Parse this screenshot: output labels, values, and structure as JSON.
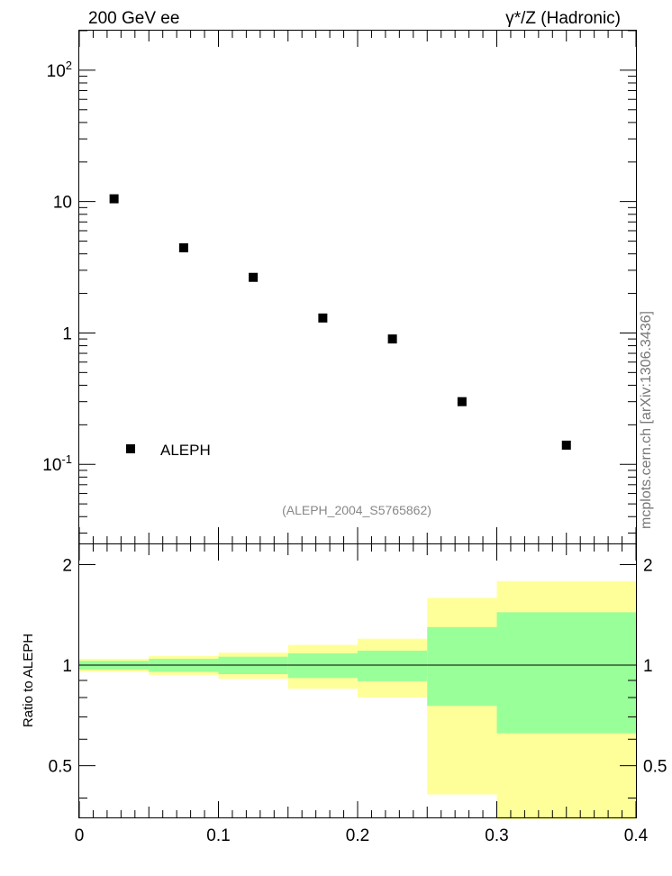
{
  "header": {
    "left": "200 GeV ee",
    "right": "γ*/Z (Hadronic)"
  },
  "side_label": "mcplots.cern.ch [arXiv:1306.3436]",
  "ref_label": "(ALEPH_2004_S5765862)",
  "legend_label": "ALEPH",
  "ratio_ylabel": "Ratio to ALEPH",
  "colors": {
    "marker": "#000000",
    "band_outer": "#ffff99",
    "band_inner": "#99ff99"
  },
  "chart_data": [
    {
      "type": "scatter",
      "yscale": "log",
      "xlim": [
        0,
        0.4
      ],
      "ylim": [
        0.025,
        200
      ],
      "ytick_labels": [
        "10^-1",
        "1",
        "10",
        "10^2"
      ],
      "legend": "bottom-left",
      "series": [
        {
          "name": "ALEPH",
          "x": [
            0.025,
            0.075,
            0.125,
            0.175,
            0.225,
            0.275,
            0.35
          ],
          "y": [
            10.5,
            4.45,
            2.65,
            1.3,
            0.9,
            0.3,
            0.14
          ]
        }
      ]
    },
    {
      "type": "area",
      "ylabel": "Ratio to ALEPH",
      "xlim": [
        0,
        0.4
      ],
      "ylim": [
        0.35,
        2.3
      ],
      "xtick_labels": [
        "0",
        "0.1",
        "0.2",
        "0.3",
        "0.4"
      ],
      "ytick_labels": [
        "0.5",
        "1",
        "2"
      ],
      "reference_line": 1,
      "bins": [
        {
          "lo": 0.0,
          "hi": 0.05,
          "outer": [
            0.955,
            1.045
          ],
          "inner": [
            0.97,
            1.03
          ]
        },
        {
          "lo": 0.05,
          "hi": 0.1,
          "outer": [
            0.935,
            1.065
          ],
          "inner": [
            0.955,
            1.045
          ]
        },
        {
          "lo": 0.1,
          "hi": 0.15,
          "outer": [
            0.91,
            1.09
          ],
          "inner": [
            0.94,
            1.06
          ]
        },
        {
          "lo": 0.15,
          "hi": 0.2,
          "outer": [
            0.85,
            1.15
          ],
          "inner": [
            0.915,
            1.085
          ]
        },
        {
          "lo": 0.2,
          "hi": 0.25,
          "outer": [
            0.8,
            1.2
          ],
          "inner": [
            0.895,
            1.105
          ]
        },
        {
          "lo": 0.25,
          "hi": 0.3,
          "outer": [
            0.41,
            1.59
          ],
          "inner": [
            0.755,
            1.3
          ]
        },
        {
          "lo": 0.3,
          "hi": 0.4,
          "outer": [
            0.345,
            1.785
          ],
          "inner": [
            0.625,
            1.44
          ]
        }
      ]
    }
  ]
}
